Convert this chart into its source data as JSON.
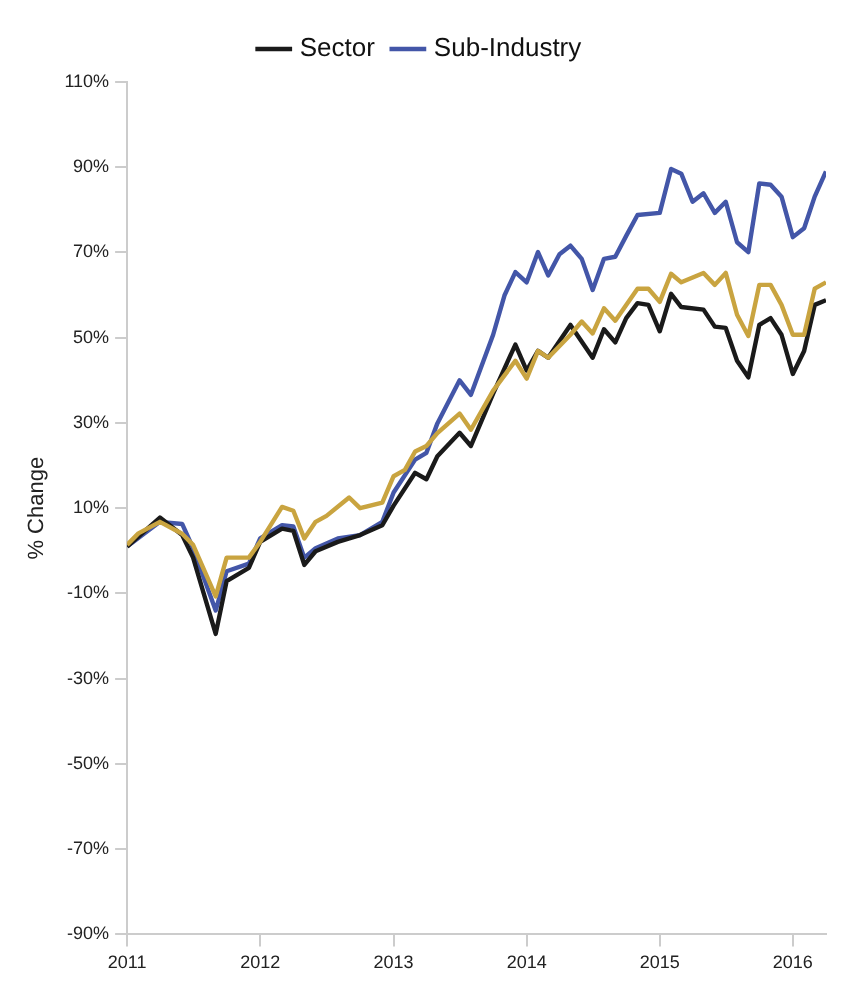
{
  "chart_data": {
    "type": "line",
    "ylabel": "% Change",
    "legend": "top",
    "grid": false,
    "marker": "none",
    "line_style": "solid",
    "xlim": [
      "2011-01",
      "2016-04"
    ],
    "xticks": [
      "2011",
      "2012",
      "2013",
      "2014",
      "2015",
      "2016"
    ],
    "ylim": [
      -90,
      110
    ],
    "yticks": [
      {
        "value": -90,
        "label": "-90%"
      },
      {
        "value": -70,
        "label": "-70%"
      },
      {
        "value": -50,
        "label": "-50%"
      },
      {
        "value": -30,
        "label": "-30%"
      },
      {
        "value": -10,
        "label": "-10%"
      },
      {
        "value": 10,
        "label": "10%"
      },
      {
        "value": 30,
        "label": "30%"
      },
      {
        "value": 50,
        "label": "50%"
      },
      {
        "value": 70,
        "label": "70%"
      },
      {
        "value": 90,
        "label": "90%"
      },
      {
        "value": 110,
        "label": "110%"
      }
    ],
    "series": [
      {
        "color": "#c9a440",
        "x": [
          "2011-01",
          "2011-02",
          "2011-04",
          "2011-06",
          "2011-07",
          "2011-09",
          "2011-10",
          "2011-12",
          "2012-01",
          "2012-03",
          "2012-04",
          "2012-05",
          "2012-06",
          "2012-07",
          "2012-09",
          "2012-10",
          "2012-12",
          "2013-01",
          "2013-02",
          "2013-03",
          "2013-04",
          "2013-05",
          "2013-07",
          "2013-08",
          "2013-10",
          "2013-12",
          "2014-01",
          "2014-02",
          "2014-03",
          "2014-05",
          "2014-06",
          "2014-07",
          "2014-08",
          "2014-09",
          "2014-11",
          "2014-12",
          "2015-01",
          "2015-02",
          "2015-03",
          "2015-05",
          "2015-06",
          "2015-07",
          "2015-08",
          "2015-09",
          "2015-10",
          "2015-11",
          "2015-12",
          "2016-01",
          "2016-02",
          "2016-03",
          "2016-04"
        ],
        "values": [
          1.4,
          4.1,
          6.8,
          4,
          1.4,
          -10.7,
          -1.6,
          -1.6,
          2.1,
          10.3,
          9.4,
          2.9,
          6.8,
          8.2,
          12.5,
          10,
          11.3,
          17.5,
          19,
          23.3,
          24.6,
          27.6,
          32.2,
          28.4,
          37.6,
          44.6,
          40.4,
          46.9,
          45.3,
          50.7,
          53.8,
          51,
          56.9,
          54,
          61.5,
          61.5,
          58.4,
          65,
          63,
          65.2,
          62.4,
          65.2,
          55.4,
          50.4,
          62.4,
          62.4,
          57.7,
          50.7,
          50.7,
          61.5,
          63
        ]
      },
      {
        "name": "Sector",
        "color": "#1a1a1a",
        "x": [
          "2011-01",
          "2011-04",
          "2011-06",
          "2011-07",
          "2011-09",
          "2011-10",
          "2011-12",
          "2012-01",
          "2012-03",
          "2012-04",
          "2012-05",
          "2012-06",
          "2012-08",
          "2012-10",
          "2012-12",
          "2013-01",
          "2013-03",
          "2013-04",
          "2013-05",
          "2013-07",
          "2013-08",
          "2013-10",
          "2013-12",
          "2014-01",
          "2014-02",
          "2014-03",
          "2014-05",
          "2014-07",
          "2014-08",
          "2014-09",
          "2014-10",
          "2014-11",
          "2014-12",
          "2015-01",
          "2015-02",
          "2015-03",
          "2015-05",
          "2015-06",
          "2015-07",
          "2015-08",
          "2015-09",
          "2015-10",
          "2015-11",
          "2015-12",
          "2016-01",
          "2016-02",
          "2016-03",
          "2016-04"
        ],
        "values": [
          1,
          7.8,
          3.7,
          -1.6,
          -19.5,
          -7.1,
          -4,
          2.1,
          5.2,
          4.7,
          -3.3,
          -0.1,
          2.1,
          3.7,
          6,
          10.6,
          18.3,
          16.8,
          22.2,
          27.7,
          24.6,
          36.9,
          48.4,
          42.3,
          46.9,
          45.3,
          53,
          45.3,
          52,
          48.9,
          54.6,
          58.1,
          57.7,
          51.5,
          60.3,
          57.2,
          56.6,
          52.6,
          52.3,
          44.6,
          40.7,
          53,
          54.6,
          50.7,
          41.5,
          46.9,
          57.7,
          58.8
        ]
      },
      {
        "name": "Sub-Industry",
        "color": "#4356a8",
        "x": [
          "2011-01",
          "2011-04",
          "2011-06",
          "2011-07",
          "2011-09",
          "2011-10",
          "2011-12",
          "2012-01",
          "2012-03",
          "2012-04",
          "2012-05",
          "2012-06",
          "2012-08",
          "2012-10",
          "2012-12",
          "2013-01",
          "2013-03",
          "2013-04",
          "2013-05",
          "2013-07",
          "2013-08",
          "2013-10",
          "2013-11",
          "2013-12",
          "2014-01",
          "2014-02",
          "2014-03",
          "2014-04",
          "2014-05",
          "2014-06",
          "2014-07",
          "2014-08",
          "2014-09",
          "2014-10",
          "2014-11",
          "2015-01",
          "2015-02",
          "2015-03",
          "2015-04",
          "2015-05",
          "2015-06",
          "2015-07",
          "2015-08",
          "2015-09",
          "2015-10",
          "2015-11",
          "2015-12",
          "2016-01",
          "2016-02",
          "2016-03",
          "2016-04"
        ],
        "values": [
          1,
          6.8,
          6.3,
          0.6,
          -14,
          -4.8,
          -3,
          2.9,
          6,
          5.7,
          -1.6,
          0.6,
          2.9,
          3.7,
          6.8,
          13.7,
          21.4,
          23,
          29.9,
          40,
          36.6,
          50.7,
          59.9,
          65.4,
          63,
          70.1,
          64.6,
          69.6,
          71.6,
          68.5,
          61.2,
          68.5,
          69,
          73.9,
          78.8,
          79.3,
          89.6,
          88.5,
          81.9,
          83.9,
          79.3,
          81.9,
          72.4,
          70.1,
          86.2,
          85.9,
          83.1,
          73.6,
          75.7,
          83.1,
          89
        ]
      }
    ]
  }
}
